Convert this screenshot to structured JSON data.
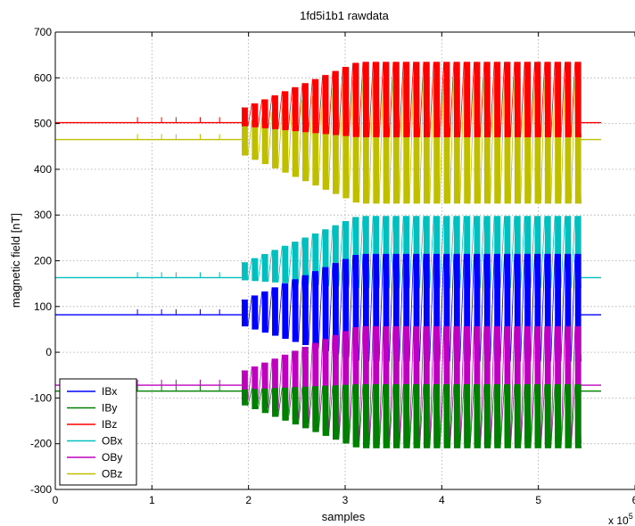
{
  "chart_data": {
    "type": "line",
    "title": "1fd5i1b1 rawdata",
    "xlabel": "samples",
    "ylabel": "magnetic field [nT]",
    "x_multiplier_label": "x 10",
    "x_multiplier_exponent": "5",
    "xlim": [
      0,
      6
    ],
    "ylim": [
      -300,
      700
    ],
    "xticks": [
      0,
      1,
      2,
      3,
      4,
      5,
      6
    ],
    "yticks": [
      -300,
      -200,
      -100,
      0,
      100,
      200,
      300,
      400,
      500,
      600,
      700
    ],
    "grid": true,
    "legend_position": "bottom-left",
    "x_data_end": 5.65,
    "burst_start": 1.93,
    "burst_end": 5.38,
    "series": [
      {
        "name": "IBx",
        "color": "#0000ff",
        "baseline": 82,
        "max": 215,
        "min": -20
      },
      {
        "name": "IBy",
        "color": "#008000",
        "baseline": -85,
        "max": -70,
        "min": -210
      },
      {
        "name": "IBz",
        "color": "#ff0000",
        "baseline": 502,
        "max": 635,
        "min": 470
      },
      {
        "name": "OBx",
        "color": "#00bfbf",
        "baseline": 163,
        "max": 298,
        "min": 140
      },
      {
        "name": "OBy",
        "color": "#bf00bf",
        "baseline": -72,
        "max": 57,
        "min": -200
      },
      {
        "name": "OBz",
        "color": "#bfbf00",
        "baseline": 465,
        "max": 598,
        "min": 325
      }
    ]
  }
}
